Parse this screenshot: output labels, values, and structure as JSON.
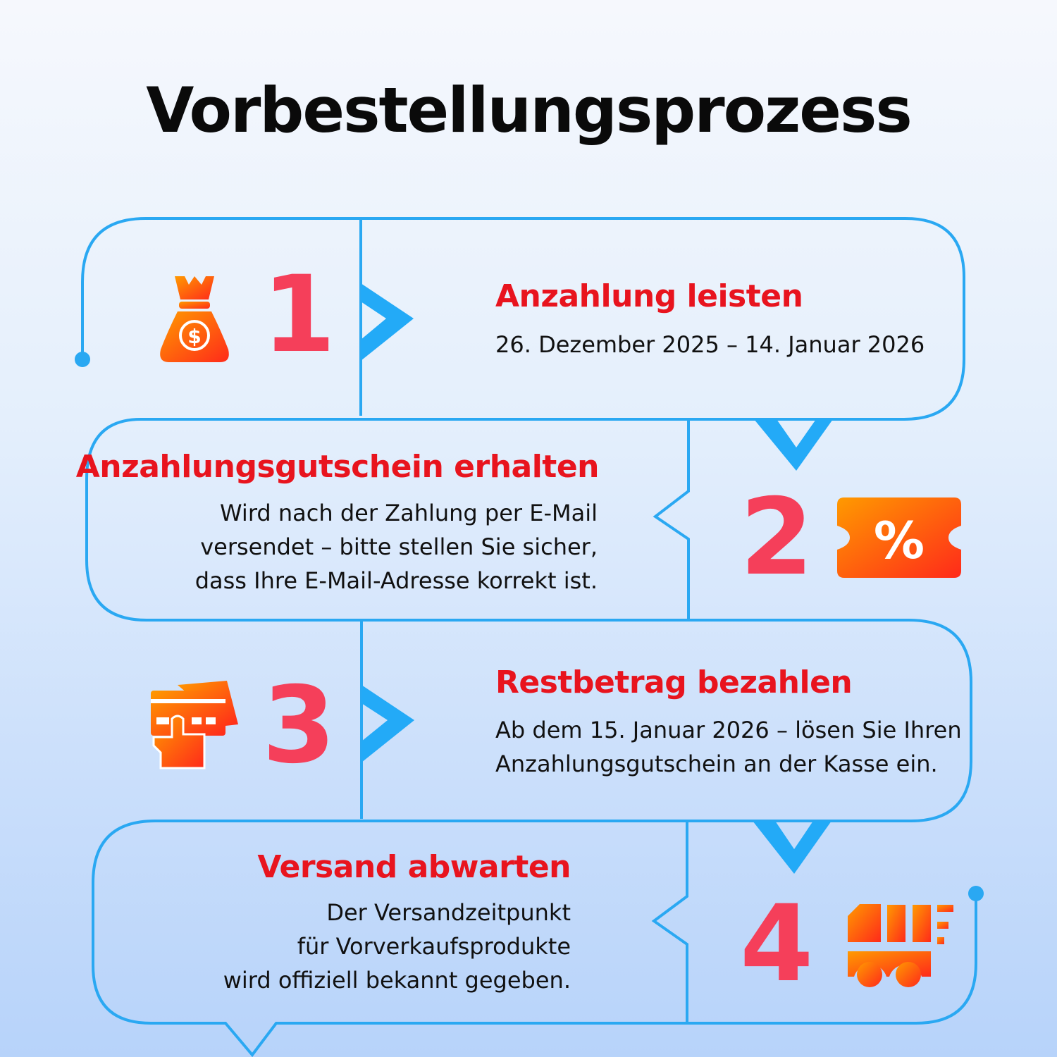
{
  "title": "Vorbestellungsprozess",
  "steps": [
    {
      "number": "1",
      "icon": "money-bag-icon",
      "heading": "Anzahlung leisten",
      "lines": [
        "26. Dezember 2025 – 14. Januar 2026"
      ]
    },
    {
      "number": "2",
      "icon": "discount-ticket-icon",
      "heading": "Anzahlungsgutschein erhalten",
      "lines": [
        "Wird nach der Zahlung per E-Mail",
        "versendet – bitte stellen Sie sicher,",
        "dass Ihre E-Mail-Adresse korrekt ist."
      ]
    },
    {
      "number": "3",
      "icon": "card-payment-icon",
      "heading": "Restbetrag bezahlen",
      "lines": [
        "Ab dem 15. Januar 2026 – lösen Sie Ihren",
        "Anzahlungsgutschein an der Kasse ein."
      ]
    },
    {
      "number": "4",
      "icon": "delivery-truck-icon",
      "heading": "Versand abwarten",
      "lines": [
        "Der Versandzeitpunkt",
        "für Vorverkaufsprodukte",
        "wird offiziell bekannt gegeben."
      ]
    }
  ],
  "colors": {
    "line": "#2aa8f2",
    "heading": "#e8141e",
    "number": "#f53f5a",
    "icon_start": "#ff9a00",
    "icon_end": "#ff2a1a"
  }
}
